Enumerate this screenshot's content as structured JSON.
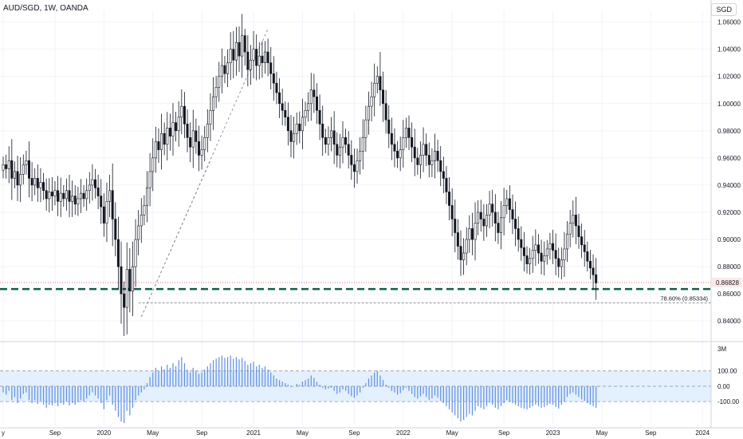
{
  "header": {
    "symbol": "AUD/SGD, 1W, OANDA",
    "currency": "SGD"
  },
  "colors": {
    "up": "#ffffff",
    "down": "#131722",
    "wick": "#131722",
    "support": "#0b5f4a",
    "cci_bar": "#5b8ff0",
    "cci_band": "#e3f0fd",
    "grid": "#f0f3fa",
    "price_label_bg": "#fbe9e9"
  },
  "chart_data": [
    {
      "type": "candlestick",
      "title": "AUD/SGD, 1W, OANDA",
      "ylim": [
        0.826,
        1.068
      ],
      "y_ticks": [
        "1.06000",
        "1.04000",
        "1.02000",
        "1.00000",
        "0.98000",
        "0.96000",
        "0.94000",
        "0.92000",
        "0.90000",
        "0.88000",
        "0.86000",
        "0.84000"
      ],
      "y_tick_values": [
        1.06,
        1.04,
        1.02,
        1.0,
        0.98,
        0.96,
        0.94,
        0.92,
        0.9,
        0.88,
        0.86,
        0.84
      ],
      "x_ticks": [
        "y",
        "Sep",
        "2020",
        "May",
        "Sep",
        "2021",
        "May",
        "Sep",
        "2022",
        "May",
        "Sep",
        "2023",
        "May",
        "Sep",
        "2024"
      ],
      "x_tick_weeks": [
        0,
        18,
        35,
        52,
        69,
        87,
        104,
        122,
        139,
        156,
        174,
        191,
        208,
        225,
        243
      ],
      "last_price": "0.86828",
      "last_value": 0.86828,
      "support_level": 0.8635,
      "fib_label": "78.60% (0.85334)",
      "fib_value": 0.85334,
      "fib_start_week": 47,
      "trendline": [
        {
          "week": 48,
          "value": 0.843
        },
        {
          "week": 92,
          "value": 1.055
        }
      ],
      "trendline2": [
        {
          "week": 48,
          "value": 0.843
        },
        {
          "week": 72,
          "value": 0.958
        }
      ],
      "closes": [
        0.955,
        0.952,
        0.958,
        0.945,
        0.95,
        0.94,
        0.948,
        0.955,
        0.958,
        0.945,
        0.94,
        0.945,
        0.938,
        0.942,
        0.936,
        0.93,
        0.935,
        0.932,
        0.936,
        0.928,
        0.934,
        0.93,
        0.936,
        0.928,
        0.932,
        0.926,
        0.93,
        0.934,
        0.93,
        0.936,
        0.94,
        0.944,
        0.938,
        0.932,
        0.924,
        0.912,
        0.928,
        0.936,
        0.915,
        0.9,
        0.88,
        0.86,
        0.85,
        0.878,
        0.862,
        0.88,
        0.9,
        0.91,
        0.918,
        0.925,
        0.938,
        0.95,
        0.96,
        0.972,
        0.966,
        0.978,
        0.97,
        0.982,
        0.976,
        0.986,
        0.98,
        0.99,
        0.998,
        0.985,
        0.975,
        0.968,
        0.98,
        0.972,
        0.962,
        0.966,
        0.975,
        0.985,
        0.995,
        1.005,
        1.012,
        1.02,
        1.028,
        1.022,
        1.03,
        1.04,
        1.032,
        1.045,
        1.035,
        1.05,
        1.038,
        1.025,
        1.032,
        1.04,
        1.028,
        1.035,
        1.03,
        1.038,
        1.03,
        1.022,
        1.015,
        1.008,
        1.0,
        0.995,
        0.99,
        0.98,
        0.972,
        0.978,
        0.985,
        0.98,
        0.99,
        0.995,
        1.0,
        1.01,
        1.005,
        0.995,
        0.985,
        0.975,
        0.97,
        0.975,
        0.98,
        0.97,
        0.962,
        0.968,
        0.975,
        0.97,
        0.962,
        0.955,
        0.95,
        0.958,
        0.965,
        0.975,
        0.988,
        0.998,
        1.005,
        1.015,
        1.02,
        1.01,
        1.0,
        0.988,
        0.978,
        0.97,
        0.965,
        0.96,
        0.966,
        0.975,
        0.982,
        0.975,
        0.968,
        0.96,
        0.955,
        0.962,
        0.97,
        0.962,
        0.955,
        0.958,
        0.965,
        0.958,
        0.95,
        0.945,
        0.935,
        0.925,
        0.915,
        0.905,
        0.895,
        0.885,
        0.89,
        0.9,
        0.908,
        0.9,
        0.912,
        0.92,
        0.915,
        0.91,
        0.918,
        0.926,
        0.92,
        0.912,
        0.905,
        0.916,
        0.925,
        0.93,
        0.922,
        0.915,
        0.908,
        0.9,
        0.894,
        0.888,
        0.882,
        0.886,
        0.892,
        0.896,
        0.89,
        0.884,
        0.888,
        0.893,
        0.897,
        0.892,
        0.886,
        0.88,
        0.885,
        0.893,
        0.904,
        0.912,
        0.918,
        0.91,
        0.902,
        0.896,
        0.891,
        0.884,
        0.879,
        0.874,
        0.868
      ],
      "indicator": {
        "name": "CCI",
        "ylim": [
          -250,
          270
        ],
        "y_ticks": [
          "100.00",
          "0.00",
          "-100.00"
        ],
        "y_tick_values": [
          100,
          0,
          -100
        ],
        "values": [
          -40,
          -55,
          -30,
          -90,
          -70,
          -110,
          -80,
          -50,
          -40,
          -90,
          -110,
          -90,
          -115,
          -95,
          -120,
          -140,
          -120,
          -125,
          -110,
          -130,
          -110,
          -120,
          -100,
          -125,
          -110,
          -120,
          -105,
          -90,
          -100,
          -80,
          -60,
          -40,
          -60,
          -80,
          -110,
          -150,
          -90,
          -60,
          -120,
          -160,
          -200,
          -230,
          -240,
          -160,
          -190,
          -140,
          -90,
          -60,
          -40,
          -20,
          20,
          60,
          90,
          120,
          100,
          130,
          110,
          140,
          120,
          150,
          130,
          170,
          190,
          150,
          110,
          90,
          120,
          100,
          80,
          90,
          110,
          130,
          150,
          170,
          180,
          190,
          200,
          185,
          190,
          200,
          180,
          190,
          175,
          185,
          165,
          140,
          150,
          160,
          130,
          140,
          120,
          130,
          110,
          90,
          70,
          50,
          40,
          30,
          20,
          10,
          -5,
          0,
          15,
          10,
          30,
          40,
          50,
          70,
          55,
          30,
          10,
          -10,
          -20,
          -15,
          -10,
          -30,
          -50,
          -40,
          -20,
          -30,
          -50,
          -65,
          -75,
          -60,
          -40,
          -10,
          20,
          50,
          70,
          90,
          100,
          70,
          40,
          10,
          -10,
          -30,
          -40,
          -55,
          -45,
          -25,
          -10,
          -30,
          -50,
          -70,
          -80,
          -65,
          -50,
          -70,
          -90,
          -80,
          -60,
          -75,
          -95,
          -110,
          -130,
          -150,
          -170,
          -190,
          -210,
          -230,
          -220,
          -200,
          -180,
          -190,
          -160,
          -130,
          -140,
          -150,
          -130,
          -110,
          -120,
          -140,
          -150,
          -130,
          -110,
          -90,
          -100,
          -110,
          -120,
          -130,
          -140,
          -145,
          -150,
          -140,
          -130,
          -120,
          -130,
          -140,
          -135,
          -125,
          -115,
          -120,
          -135,
          -145,
          -120,
          -100,
          -70,
          -50,
          -40,
          -55,
          -70,
          -85,
          -95,
          -110,
          -120,
          -130,
          -140
        ]
      }
    }
  ]
}
